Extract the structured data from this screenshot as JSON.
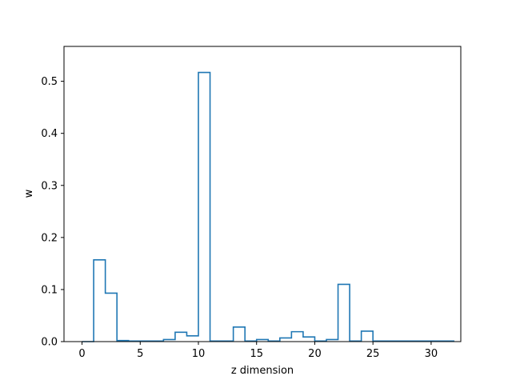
{
  "chart_data": {
    "type": "line",
    "style": "step-histogram",
    "xlabel": "z dimension",
    "ylabel": "w",
    "xlim": [
      -1.55,
      32.55
    ],
    "ylim": [
      0,
      0.567
    ],
    "xticks": [
      0,
      5,
      10,
      15,
      20,
      25,
      30
    ],
    "yticks": [
      0.0,
      0.1,
      0.2,
      0.3,
      0.4,
      0.5
    ],
    "ytick_labels": [
      "0.0",
      "0.1",
      "0.2",
      "0.3",
      "0.4",
      "0.5"
    ],
    "grid": false,
    "line_color": "#1f77b4",
    "x": [
      0,
      1,
      2,
      3,
      4,
      5,
      6,
      7,
      8,
      9,
      10,
      11,
      12,
      13,
      14,
      15,
      16,
      17,
      18,
      19,
      20,
      21,
      22,
      23,
      24,
      25,
      26,
      27,
      28,
      29,
      30,
      31
    ],
    "values": [
      0.0,
      0.157,
      0.093,
      0.002,
      0.001,
      0.001,
      0.001,
      0.004,
      0.018,
      0.011,
      0.517,
      0.001,
      0.001,
      0.028,
      0.001,
      0.004,
      0.001,
      0.007,
      0.019,
      0.009,
      0.001,
      0.004,
      0.11,
      0.001,
      0.02,
      0.001,
      0.001,
      0.001,
      0.001,
      0.001,
      0.001,
      0.001
    ]
  }
}
